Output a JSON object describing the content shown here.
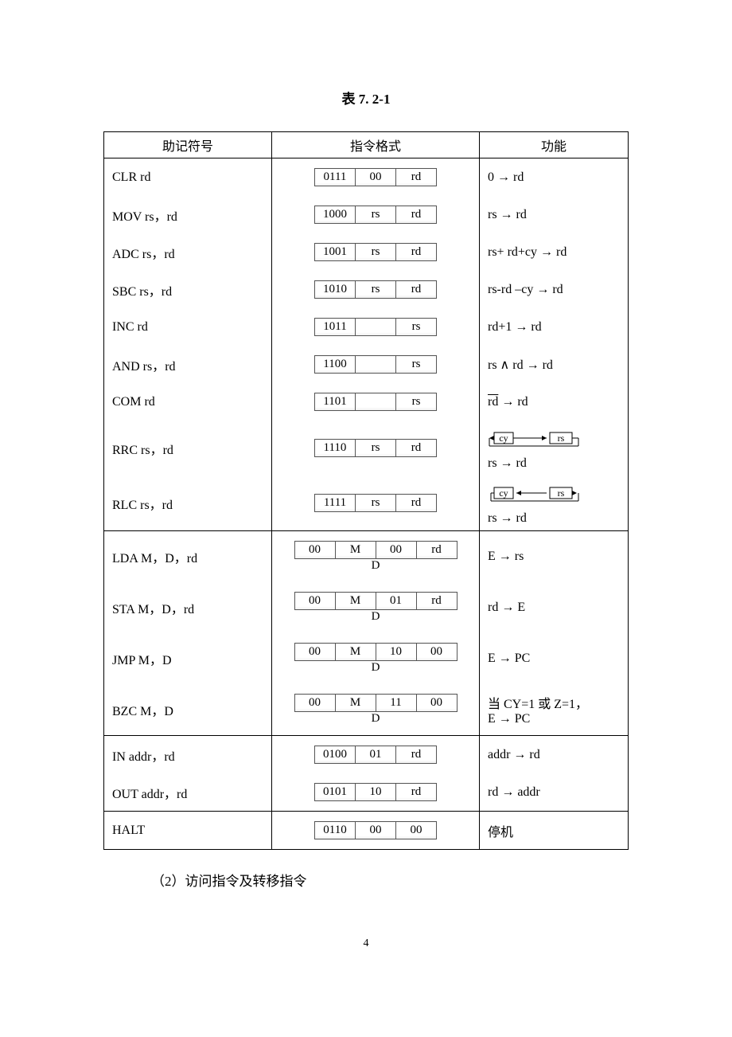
{
  "title": "表 7. 2-1",
  "headers": {
    "c1": "助记符号",
    "c2": "指令格式",
    "c3": "功能"
  },
  "rows": [
    {
      "mn": "CLR rd",
      "fmt": [
        "0111",
        "00",
        "rd"
      ],
      "func": "0 → rd"
    },
    {
      "mn": "MOV rs，rd",
      "fmt": [
        "1000",
        "rs",
        "rd"
      ],
      "func": "rs → rd"
    },
    {
      "mn": "ADC rs，rd",
      "fmt": [
        "1001",
        "rs",
        "rd"
      ],
      "func": "rs+ rd+cy → rd"
    },
    {
      "mn": "SBC rs，rd",
      "fmt": [
        "1010",
        "rs",
        "rd"
      ],
      "func": "rs-rd –cy → rd"
    },
    {
      "mn": "INC rd",
      "fmt": [
        "1011",
        "",
        "rs"
      ],
      "func": "rd+1 → rd"
    },
    {
      "mn": "AND rs，rd",
      "fmt": [
        "1100",
        "",
        "rs"
      ],
      "func": "rs ∧ rd → rd"
    },
    {
      "mn": "COM rd",
      "fmt": [
        "1101",
        "",
        "rs"
      ],
      "func_html": "<span class='overline'>rd</span> → rd"
    },
    {
      "mn": "RRC rs，rd",
      "fmt": [
        "1110",
        "rs",
        "rd"
      ],
      "func_svg": "right",
      "func2": "rs → rd"
    },
    {
      "mn": "RLC rs，rd",
      "fmt": [
        "1111",
        "rs",
        "rd"
      ],
      "func_svg": "left",
      "func2": "rs → rd"
    }
  ],
  "rows2": [
    {
      "mn": "LDA  M，D，rd",
      "fmt4": [
        "00",
        "M",
        "00",
        "rd"
      ],
      "d": "D",
      "func": "E → rs"
    },
    {
      "mn": "STA  M，D，rd",
      "fmt4": [
        "00",
        "M",
        "01",
        "rd"
      ],
      "d": "D",
      "func": "rd → E"
    },
    {
      "mn": "JMP  M，D",
      "fmt4": [
        "00",
        "M",
        "10",
        "00"
      ],
      "d": "D",
      "func": "E → PC"
    },
    {
      "mn": "BZC  M，D",
      "fmt4": [
        "00",
        "M",
        "11",
        "00"
      ],
      "d": "D",
      "func": "当 CY=1 或 Z=1，",
      "func2": "E → PC"
    }
  ],
  "rows3": [
    {
      "mn": "IN  addr，rd",
      "fmt": [
        "0100",
        "01",
        "rd"
      ],
      "func": "addr → rd"
    },
    {
      "mn": "OUT addr，rd",
      "fmt": [
        "0101",
        "10",
        "rd"
      ],
      "func": "rd → addr"
    }
  ],
  "rows4": [
    {
      "mn": "HALT",
      "fmt": [
        "0110",
        "00",
        "00"
      ],
      "func": "停机"
    }
  ],
  "subtext": "（2）访问指令及转移指令",
  "pagenum": "4",
  "svg": {
    "cy": "cy",
    "rs": "rs"
  }
}
